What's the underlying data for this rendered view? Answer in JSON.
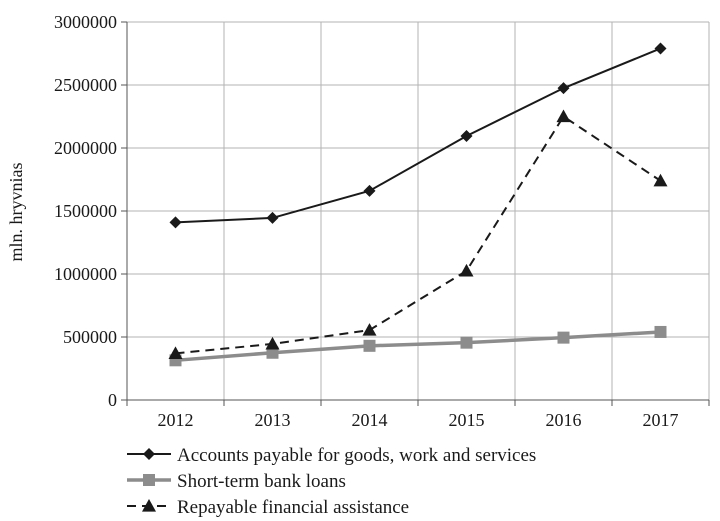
{
  "chart_data": {
    "type": "line",
    "ylabel": "mln. hryvnias",
    "xlabel": "",
    "categories": [
      "2012",
      "2013",
      "2014",
      "2015",
      "2016",
      "2017"
    ],
    "ylim": [
      0,
      3000000
    ],
    "y_ticks": [
      0,
      500000,
      1000000,
      1500000,
      2000000,
      2500000,
      3000000
    ],
    "y_tick_labels": [
      "0",
      "500000",
      "1000000",
      "1500000",
      "2000000",
      "2500000",
      "3000000"
    ],
    "grid": true,
    "legend_position": "bottom",
    "series": [
      {
        "name": "Accounts payable for goods, work and services",
        "values": [
          1410000,
          1445000,
          1660000,
          2095000,
          2475000,
          2790000
        ],
        "color": "#1a1a1a",
        "marker": "diamond",
        "line_style": "solid"
      },
      {
        "name": "Short-term bank loans",
        "values": [
          315000,
          375000,
          430000,
          455000,
          495000,
          540000
        ],
        "color": "#8c8c8c",
        "marker": "square",
        "line_style": "solid"
      },
      {
        "name": "Repayable financial assistance",
        "values": [
          370000,
          445000,
          555000,
          1025000,
          2250000,
          1740000
        ],
        "color": "#1a1a1a",
        "marker": "triangle",
        "line_style": "dashed"
      }
    ]
  }
}
